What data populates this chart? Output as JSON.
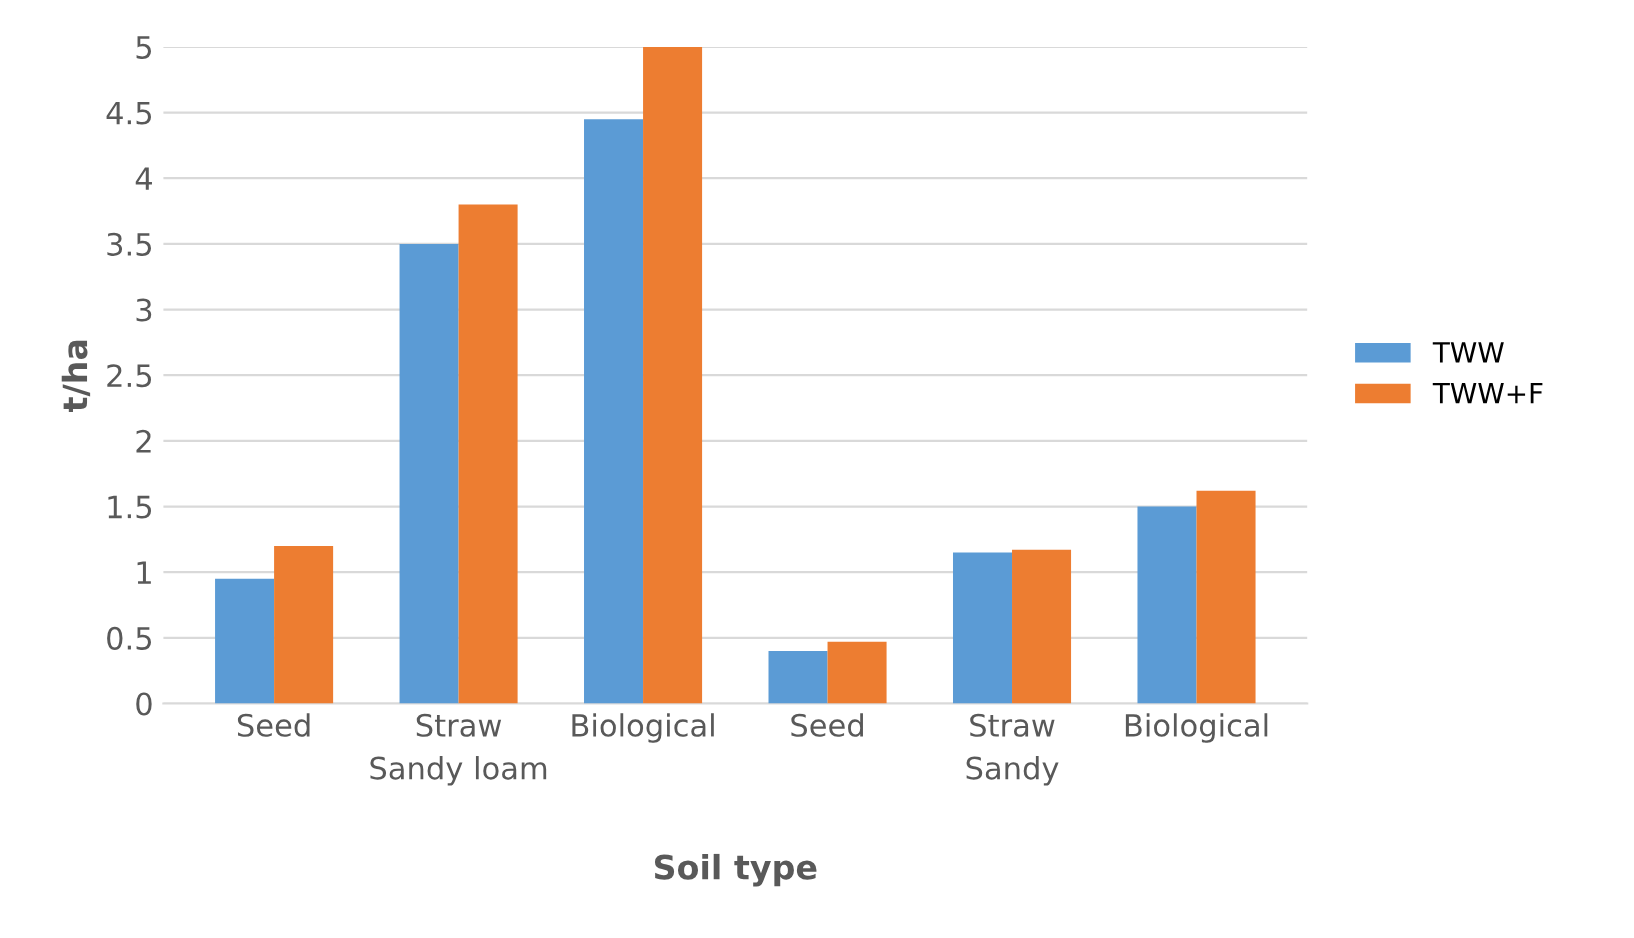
{
  "chart_data": {
    "type": "bar",
    "xlabel": "Soil type",
    "ylabel": "t/ha",
    "categories": [
      "Seed",
      "Straw",
      "Biological",
      "Seed",
      "Straw",
      "Biological"
    ],
    "series": [
      {
        "name": "TWW",
        "color": "#5b9bd5",
        "values": [
          0.95,
          3.5,
          4.45,
          0.4,
          1.15,
          1.5
        ]
      },
      {
        "name": "TWW+F",
        "color": "#ed7d31",
        "values": [
          1.2,
          3.8,
          5.0,
          0.47,
          1.17,
          1.62
        ]
      }
    ],
    "annotations": [
      "Sandy loam",
      "Sandy"
    ],
    "ylim": [
      0,
      5
    ],
    "yticks": [
      0,
      0.5,
      1,
      1.5,
      2,
      2.5,
      3,
      3.5,
      4,
      4.5,
      5
    ],
    "grid": "y",
    "legend": "right"
  }
}
